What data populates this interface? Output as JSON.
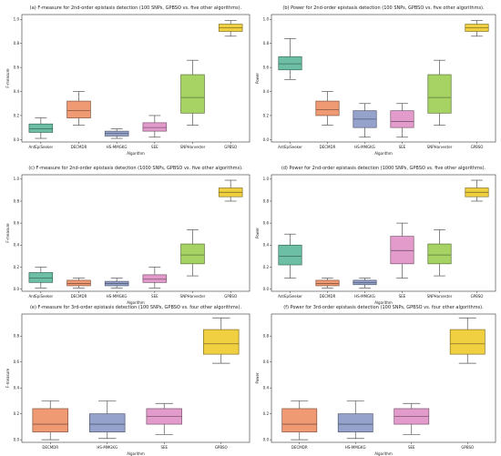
{
  "colors": {
    "AntEpiSeeker": "#6cbfa5",
    "DECMDR": "#f09a74",
    "HS-MMGKG": "#95a3cc",
    "SEE": "#e29bcb",
    "SNPHarvester": "#a7d365",
    "GPBSO": "#f0d040"
  },
  "chart_data": [
    {
      "id": "a",
      "type": "boxplot",
      "title": "(a) F-measure for 2nd-order epistasis detection (100 SNPs, GPBSO vs. five other algorithms).",
      "xlabel": "Algorithm",
      "ylabel": "F-measure",
      "ylim": [
        -0.02,
        1.04
      ],
      "yticks": [
        "0.0",
        "0.2",
        "0.4",
        "0.6",
        "0.8",
        "1.0"
      ],
      "categories": [
        "AntEpiSeeker",
        "DECMDR",
        "HS-MMGKG",
        "SEE",
        "SNPHarvester",
        "GPBSO"
      ],
      "boxes": [
        {
          "min": 0.01,
          "q1": 0.06,
          "median": 0.09,
          "q3": 0.13,
          "max": 0.18
        },
        {
          "min": 0.12,
          "q1": 0.18,
          "median": 0.24,
          "q3": 0.32,
          "max": 0.4
        },
        {
          "min": 0.01,
          "q1": 0.03,
          "median": 0.05,
          "q3": 0.07,
          "max": 0.09
        },
        {
          "min": 0.02,
          "q1": 0.07,
          "median": 0.1,
          "q3": 0.14,
          "max": 0.2
        },
        {
          "min": 0.12,
          "q1": 0.22,
          "median": 0.35,
          "q3": 0.54,
          "max": 0.66
        },
        {
          "min": 0.86,
          "q1": 0.9,
          "median": 0.93,
          "q3": 0.96,
          "max": 0.99
        }
      ]
    },
    {
      "id": "b",
      "type": "boxplot",
      "title": "(b) Power for 2nd-order epistasis detection (100 SNPs, GPBSO vs. five other algorithms).",
      "xlabel": "Algorithm",
      "ylabel": "Power",
      "ylim": [
        -0.02,
        1.04
      ],
      "yticks": [
        "0.0",
        "0.2",
        "0.4",
        "0.6",
        "0.8",
        "1.0"
      ],
      "categories": [
        "AntEpiSeeker",
        "DECMDR",
        "HS-MMGKG",
        "SEE",
        "SNPHarvester",
        "GPBSO"
      ],
      "boxes": [
        {
          "min": 0.5,
          "q1": 0.58,
          "median": 0.63,
          "q3": 0.69,
          "max": 0.84
        },
        {
          "min": 0.12,
          "q1": 0.2,
          "median": 0.25,
          "q3": 0.32,
          "max": 0.4
        },
        {
          "min": 0.02,
          "q1": 0.1,
          "median": 0.17,
          "q3": 0.24,
          "max": 0.3
        },
        {
          "min": 0.02,
          "q1": 0.1,
          "median": 0.15,
          "q3": 0.24,
          "max": 0.3
        },
        {
          "min": 0.12,
          "q1": 0.22,
          "median": 0.35,
          "q3": 0.54,
          "max": 0.66
        },
        {
          "min": 0.86,
          "q1": 0.9,
          "median": 0.93,
          "q3": 0.96,
          "max": 0.99
        }
      ]
    },
    {
      "id": "c",
      "type": "boxplot",
      "title": "(c) F-measure for 2nd-order epistasis detection (1000 SNPs, GPBSO vs. five other algorithms).",
      "xlabel": "Algorithm",
      "ylabel": "F-measure",
      "ylim": [
        -0.02,
        1.04
      ],
      "yticks": [
        "0.0",
        "0.2",
        "0.4",
        "0.6",
        "0.8",
        "1.0"
      ],
      "categories": [
        "AntEpiSeeker",
        "DECMDR",
        "HS-MMGKG",
        "SEE",
        "SNPHarvester",
        "GPBSO"
      ],
      "boxes": [
        {
          "min": 0.01,
          "q1": 0.06,
          "median": 0.1,
          "q3": 0.15,
          "max": 0.2
        },
        {
          "min": 0.01,
          "q1": 0.03,
          "median": 0.05,
          "q3": 0.08,
          "max": 0.1
        },
        {
          "min": 0.01,
          "q1": 0.03,
          "median": 0.05,
          "q3": 0.07,
          "max": 0.1
        },
        {
          "min": 0.01,
          "q1": 0.06,
          "median": 0.09,
          "q3": 0.13,
          "max": 0.2
        },
        {
          "min": 0.12,
          "q1": 0.23,
          "median": 0.31,
          "q3": 0.41,
          "max": 0.54
        },
        {
          "min": 0.8,
          "q1": 0.84,
          "median": 0.88,
          "q3": 0.92,
          "max": 0.99
        }
      ]
    },
    {
      "id": "d",
      "type": "boxplot",
      "title": "(d) Power for 2nd-order epistasis detection (1000 SNPs, GPBSO vs. five other algorithms).",
      "xlabel": "Algorithm",
      "ylabel": "Power",
      "ylim": [
        -0.02,
        1.04
      ],
      "yticks": [
        "0.0",
        "0.2",
        "0.4",
        "0.6",
        "0.8",
        "1.0"
      ],
      "categories": [
        "AntEpiSeeker",
        "DECMDR",
        "HS-MMGKG",
        "SEE",
        "SNPHarvester",
        "GPBSO"
      ],
      "boxes": [
        {
          "min": 0.1,
          "q1": 0.22,
          "median": 0.3,
          "q3": 0.4,
          "max": 0.5
        },
        {
          "min": 0.01,
          "q1": 0.03,
          "median": 0.05,
          "q3": 0.08,
          "max": 0.1
        },
        {
          "min": 0.01,
          "q1": 0.04,
          "median": 0.06,
          "q3": 0.08,
          "max": 0.1
        },
        {
          "min": 0.1,
          "q1": 0.23,
          "median": 0.35,
          "q3": 0.48,
          "max": 0.6
        },
        {
          "min": 0.12,
          "q1": 0.23,
          "median": 0.31,
          "q3": 0.41,
          "max": 0.54
        },
        {
          "min": 0.8,
          "q1": 0.84,
          "median": 0.88,
          "q3": 0.92,
          "max": 0.99
        }
      ]
    },
    {
      "id": "e",
      "type": "boxplot",
      "title": "(e) F-measure for 3rd-order epistasis detection (100 SNPs, GPBSO vs. four other algorithms).",
      "xlabel": "Algorithm",
      "ylabel": "F-measure",
      "ylim": [
        -0.02,
        0.97
      ],
      "yticks": [
        "0.0",
        "0.2",
        "0.4",
        "0.6",
        "0.8"
      ],
      "categories": [
        "DECMDR",
        "HS-MMGKG",
        "SEE",
        "GPBSO"
      ],
      "boxes": [
        {
          "min": 0.0,
          "q1": 0.06,
          "median": 0.12,
          "q3": 0.24,
          "max": 0.3
        },
        {
          "min": 0.01,
          "q1": 0.06,
          "median": 0.12,
          "q3": 0.2,
          "max": 0.3
        },
        {
          "min": 0.04,
          "q1": 0.12,
          "median": 0.18,
          "q3": 0.24,
          "max": 0.28
        },
        {
          "min": 0.59,
          "q1": 0.66,
          "median": 0.74,
          "q3": 0.85,
          "max": 0.94
        }
      ]
    },
    {
      "id": "f",
      "type": "boxplot",
      "title": "(f) Power for 3rd-order epistasis detection (100 SNPs, GPBSO vs. four other algorithms).",
      "xlabel": "Algorithm",
      "ylabel": "Power",
      "ylim": [
        -0.02,
        0.97
      ],
      "yticks": [
        "0.0",
        "0.2",
        "0.4",
        "0.6",
        "0.8"
      ],
      "categories": [
        "DECMDR",
        "HS-MMGKG",
        "SEE",
        "GPBSO"
      ],
      "boxes": [
        {
          "min": 0.0,
          "q1": 0.06,
          "median": 0.12,
          "q3": 0.24,
          "max": 0.3
        },
        {
          "min": 0.01,
          "q1": 0.06,
          "median": 0.12,
          "q3": 0.2,
          "max": 0.3
        },
        {
          "min": 0.04,
          "q1": 0.12,
          "median": 0.18,
          "q3": 0.24,
          "max": 0.28
        },
        {
          "min": 0.59,
          "q1": 0.66,
          "median": 0.74,
          "q3": 0.85,
          "max": 0.94
        }
      ]
    }
  ]
}
